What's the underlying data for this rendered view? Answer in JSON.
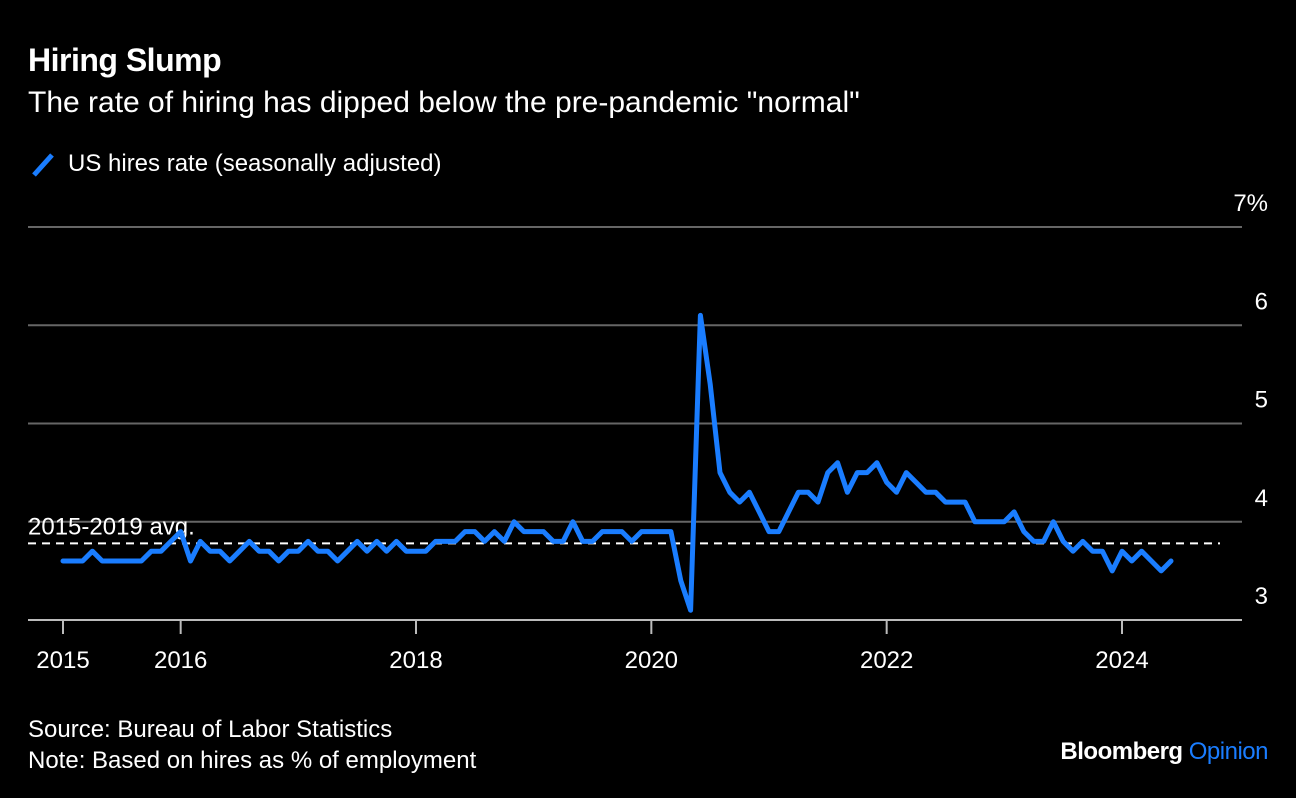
{
  "header": {
    "title": "Hiring Slump",
    "subtitle": "The rate of hiring has dipped below the pre-pandemic \"normal\""
  },
  "footer": {
    "source": "Source: Bureau of Labor Statistics",
    "note": "Note: Based on hires as % of employment"
  },
  "brand": {
    "name": "Bloomberg",
    "section": "Opinion"
  },
  "chart_data": {
    "type": "line",
    "title": "Hiring Slump",
    "subtitle": "The rate of hiring has dipped below the pre-pandemic \"normal\"",
    "xlabel": "",
    "ylabel": "",
    "ylim": [
      3,
      7
    ],
    "xlim": [
      "2015-01",
      "2024-12"
    ],
    "y_ticks": [
      3,
      4,
      5,
      6,
      7
    ],
    "y_tick_labels": [
      "3",
      "4",
      "5",
      "6",
      "7%"
    ],
    "x_ticks": [
      "2015-01",
      "2016-01",
      "2018-01",
      "2020-01",
      "2022-01",
      "2024-01"
    ],
    "x_tick_labels": [
      "2015",
      "2016",
      "2018",
      "2020",
      "2022",
      "2024"
    ],
    "y_axis_position": "right",
    "grid": true,
    "legend_position": "top-left",
    "colors": {
      "series": "#1a7dff",
      "grid": "#666666",
      "reference": "#ffffff"
    },
    "reference_line": {
      "label": "2015-2019 avg.",
      "value": 3.78,
      "style": "dashed"
    },
    "series": [
      {
        "name": "US hires rate (seasonally adjusted)",
        "x": [
          "2015-01",
          "2015-02",
          "2015-03",
          "2015-04",
          "2015-05",
          "2015-06",
          "2015-07",
          "2015-08",
          "2015-09",
          "2015-10",
          "2015-11",
          "2015-12",
          "2016-01",
          "2016-02",
          "2016-03",
          "2016-04",
          "2016-05",
          "2016-06",
          "2016-07",
          "2016-08",
          "2016-09",
          "2016-10",
          "2016-11",
          "2016-12",
          "2017-01",
          "2017-02",
          "2017-03",
          "2017-04",
          "2017-05",
          "2017-06",
          "2017-07",
          "2017-08",
          "2017-09",
          "2017-10",
          "2017-11",
          "2017-12",
          "2018-01",
          "2018-02",
          "2018-03",
          "2018-04",
          "2018-05",
          "2018-06",
          "2018-07",
          "2018-08",
          "2018-09",
          "2018-10",
          "2018-11",
          "2018-12",
          "2019-01",
          "2019-02",
          "2019-03",
          "2019-04",
          "2019-05",
          "2019-06",
          "2019-07",
          "2019-08",
          "2019-09",
          "2019-10",
          "2019-11",
          "2019-12",
          "2020-01",
          "2020-02",
          "2020-03",
          "2020-04",
          "2020-05",
          "2020-06",
          "2020-07",
          "2020-08",
          "2020-09",
          "2020-10",
          "2020-11",
          "2020-12",
          "2021-01",
          "2021-02",
          "2021-03",
          "2021-04",
          "2021-05",
          "2021-06",
          "2021-07",
          "2021-08",
          "2021-09",
          "2021-10",
          "2021-11",
          "2021-12",
          "2022-01",
          "2022-02",
          "2022-03",
          "2022-04",
          "2022-05",
          "2022-06",
          "2022-07",
          "2022-08",
          "2022-09",
          "2022-10",
          "2022-11",
          "2022-12",
          "2023-01",
          "2023-02",
          "2023-03",
          "2023-04",
          "2023-05",
          "2023-06",
          "2023-07",
          "2023-08",
          "2023-09",
          "2023-10",
          "2023-11",
          "2023-12",
          "2024-01",
          "2024-02",
          "2024-03",
          "2024-04",
          "2024-05",
          "2024-06"
        ],
        "values": [
          3.6,
          3.6,
          3.6,
          3.7,
          3.6,
          3.6,
          3.6,
          3.6,
          3.6,
          3.7,
          3.7,
          3.8,
          3.9,
          3.6,
          3.8,
          3.7,
          3.7,
          3.6,
          3.7,
          3.8,
          3.7,
          3.7,
          3.6,
          3.7,
          3.7,
          3.8,
          3.7,
          3.7,
          3.6,
          3.7,
          3.8,
          3.7,
          3.8,
          3.7,
          3.8,
          3.7,
          3.7,
          3.7,
          3.8,
          3.8,
          3.8,
          3.9,
          3.9,
          3.8,
          3.9,
          3.8,
          4.0,
          3.9,
          3.9,
          3.9,
          3.8,
          3.8,
          4.0,
          3.8,
          3.8,
          3.9,
          3.9,
          3.9,
          3.8,
          3.9,
          3.9,
          3.9,
          3.9,
          3.4,
          3.1,
          6.1,
          5.4,
          4.5,
          4.3,
          4.2,
          4.3,
          4.1,
          3.9,
          3.9,
          4.1,
          4.3,
          4.3,
          4.2,
          4.5,
          4.6,
          4.3,
          4.5,
          4.5,
          4.6,
          4.4,
          4.3,
          4.5,
          4.4,
          4.3,
          4.3,
          4.2,
          4.2,
          4.2,
          4.0,
          4.0,
          4.0,
          4.0,
          4.1,
          3.9,
          3.8,
          3.8,
          4.0,
          3.8,
          3.7,
          3.8,
          3.7,
          3.7,
          3.5,
          3.7,
          3.6,
          3.7,
          3.6,
          3.5,
          3.6
        ]
      }
    ]
  }
}
